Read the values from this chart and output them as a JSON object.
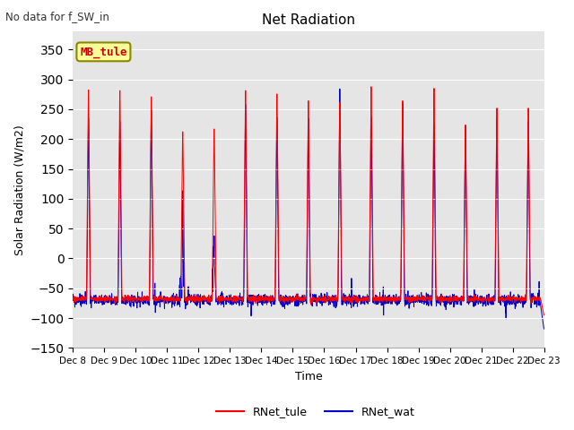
{
  "title": "Net Radiation",
  "xlabel": "Time",
  "ylabel": "Solar Radiation (W/m2)",
  "ylim": [
    -150,
    380
  ],
  "yticks": [
    -150,
    -100,
    -50,
    0,
    50,
    100,
    150,
    200,
    250,
    300,
    350
  ],
  "start_day": 8,
  "end_day": 23,
  "color_tule": "#ff0000",
  "color_wat": "#0000cc",
  "bg_color": "#e5e5e5",
  "annotation_text": "No data for f_SW_in",
  "legend_label1": "RNet_tule",
  "legend_label2": "RNet_wat",
  "legend_box_text": "MB_tule",
  "legend_box_color": "#ffff99",
  "legend_box_edge": "#888800",
  "points_per_day": 144,
  "night_tule": -68,
  "night_wat": -70,
  "day_peaks_tule": [
    302,
    301,
    290,
    228,
    233,
    301,
    295,
    283,
    280,
    308,
    283,
    305,
    240,
    270,
    270
  ],
  "day_peaks_wat": [
    255,
    250,
    270,
    140,
    10,
    280,
    257,
    255,
    308,
    258,
    283,
    243,
    243,
    255,
    250
  ]
}
